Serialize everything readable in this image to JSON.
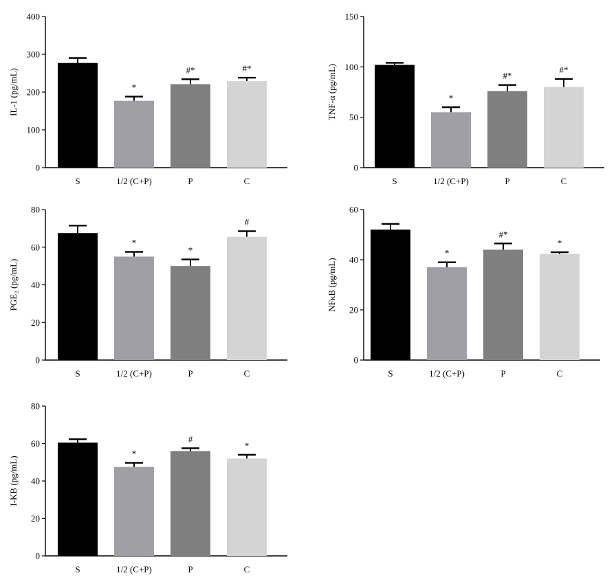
{
  "bar_colors": [
    "#000000",
    "#a0a0a4",
    "#7f7f7f",
    "#d4d4d4"
  ],
  "chart_data": [
    {
      "type": "bar",
      "categories": [
        "S",
        "1/2 (C+P)",
        "P",
        "C"
      ],
      "values": [
        277,
        177,
        221,
        229
      ],
      "errors": [
        13,
        11,
        13,
        9
      ],
      "annotations": [
        "",
        "*",
        "#*",
        "#*"
      ],
      "ylabel": "IL-1 (pg/mL)",
      "ylim": [
        0,
        400
      ],
      "yticks": [
        0,
        100,
        200,
        300,
        400
      ]
    },
    {
      "type": "bar",
      "categories": [
        "S",
        "1/2 (C+P)",
        "P",
        "C"
      ],
      "values": [
        102,
        55,
        76,
        80
      ],
      "errors": [
        2,
        5,
        6,
        8
      ],
      "annotations": [
        "",
        "*",
        "#*",
        "#*"
      ],
      "ylabel": "TNF-α (pg/mL)",
      "ylim": [
        0,
        150
      ],
      "yticks": [
        0,
        50,
        100,
        150
      ]
    },
    {
      "type": "bar",
      "categories": [
        "S",
        "1/2 (C+P)",
        "P",
        "C"
      ],
      "values": [
        67.5,
        55,
        50,
        65.5
      ],
      "errors": [
        4,
        2.5,
        3.5,
        3
      ],
      "annotations": [
        "",
        "*",
        "*",
        "#"
      ],
      "ylabel": "PGE₂ (pg/mL)",
      "ylim": [
        0,
        80
      ],
      "yticks": [
        0,
        20,
        40,
        60,
        80
      ]
    },
    {
      "type": "bar",
      "categories": [
        "S",
        "1/2 (C+P)",
        "P",
        "C"
      ],
      "values": [
        52,
        37,
        44,
        42.3
      ],
      "errors": [
        2.3,
        2,
        2.5,
        0.7
      ],
      "annotations": [
        "",
        "*",
        "#*",
        "*"
      ],
      "ylabel": "NFκB (pg/mL)",
      "ylim": [
        0,
        60
      ],
      "yticks": [
        0,
        20,
        40,
        60
      ]
    },
    {
      "type": "bar",
      "categories": [
        "S",
        "1/2 (C+P)",
        "P",
        "C"
      ],
      "values": [
        60.5,
        47.5,
        56,
        52
      ],
      "errors": [
        1.8,
        2.2,
        1.5,
        2
      ],
      "annotations": [
        "",
        "*",
        "#",
        "*"
      ],
      "ylabel": "I-KB (pg/mL)",
      "ylim": [
        0,
        80
      ],
      "yticks": [
        0,
        20,
        40,
        60,
        80
      ]
    }
  ]
}
